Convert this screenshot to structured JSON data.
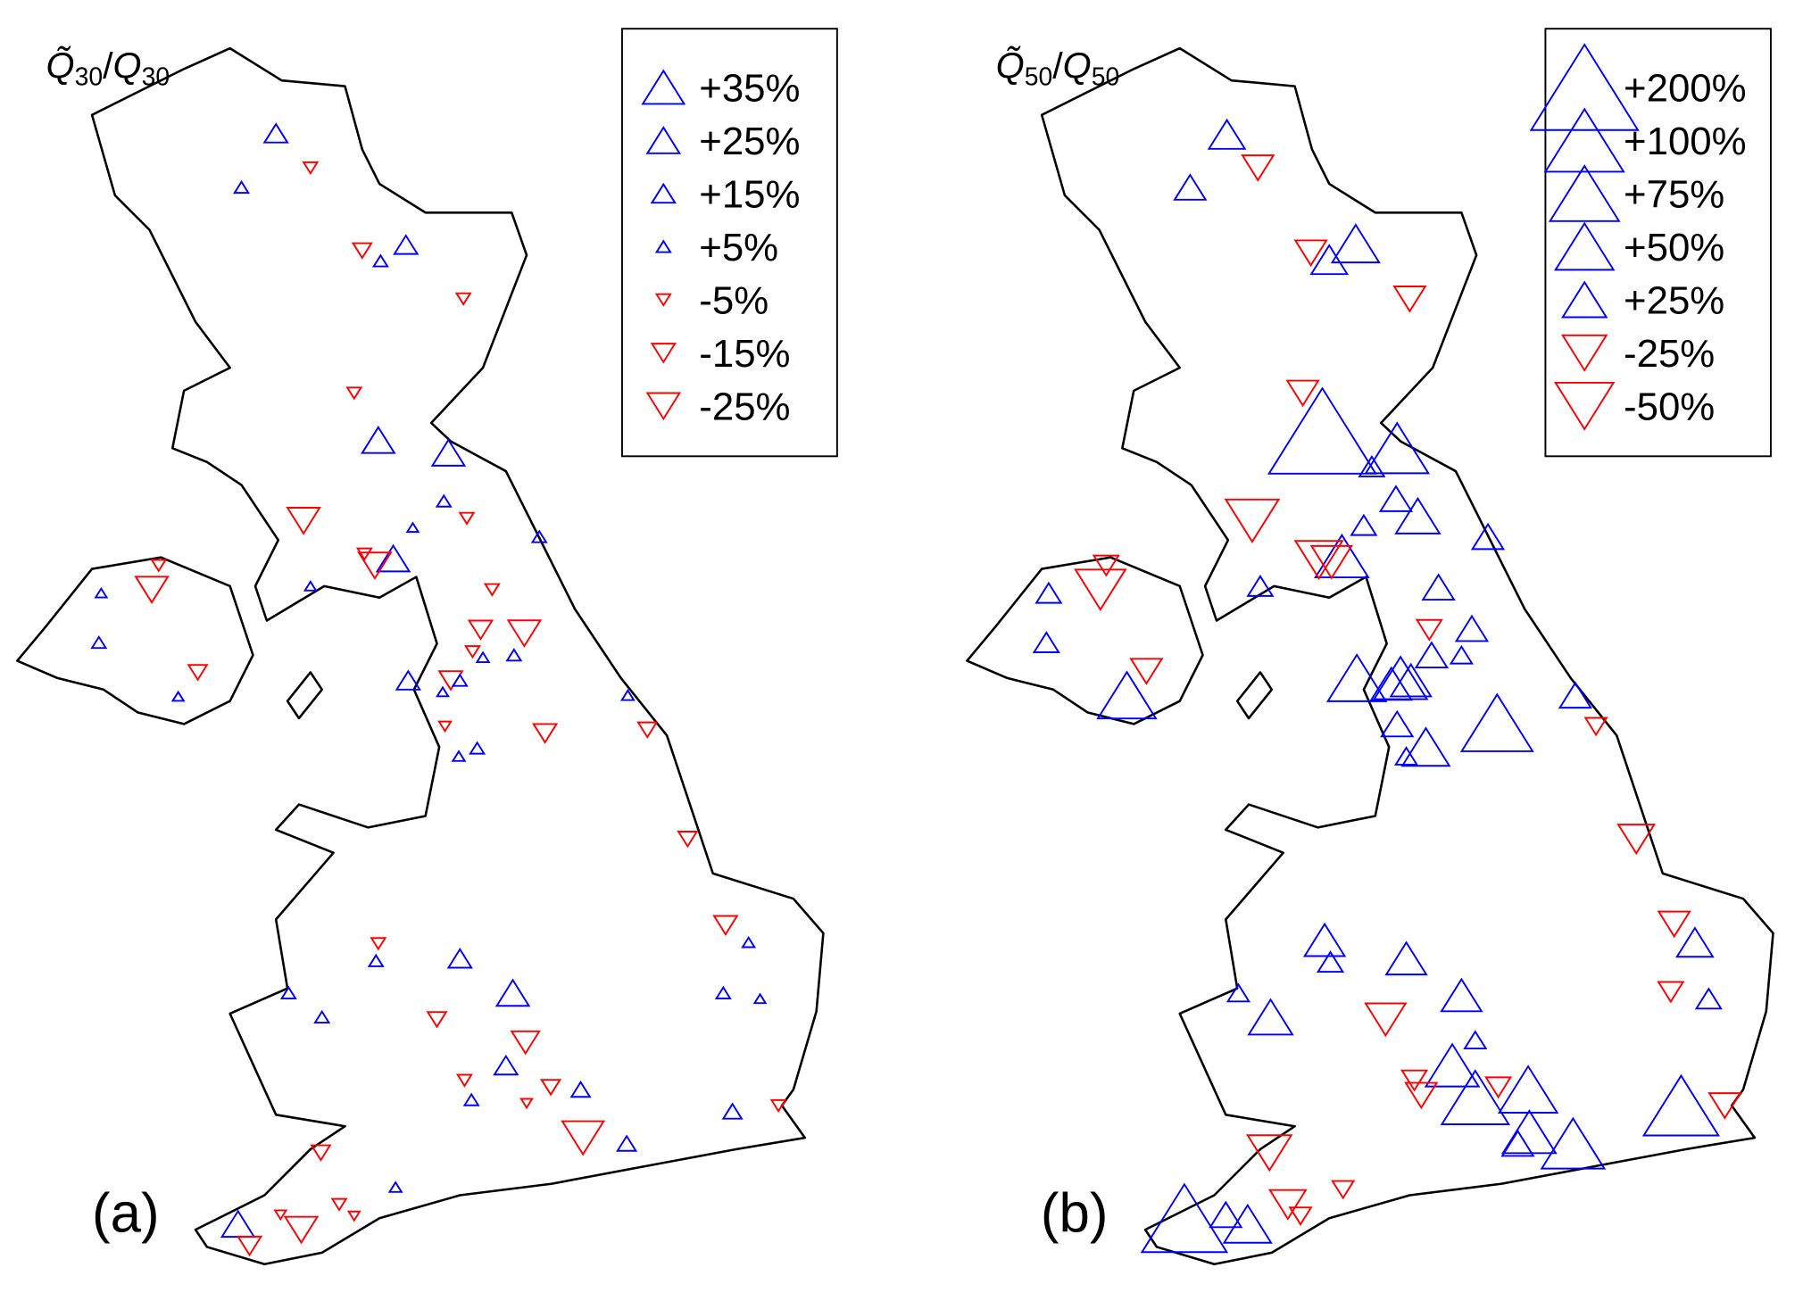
{
  "panels": [
    {
      "label": "(a)",
      "title": {
        "q": "Q̃",
        "sub1": "30",
        "sep": "/",
        "q2": "Q",
        "sub2": "30"
      },
      "legend": [
        {
          "value": 35,
          "label": "+35%"
        },
        {
          "value": 25,
          "label": "+25%"
        },
        {
          "value": 15,
          "label": "+15%"
        },
        {
          "value": 5,
          "label": "+5%"
        },
        {
          "value": -5,
          "label": "-5%"
        },
        {
          "value": -15,
          "label": "-15%"
        },
        {
          "value": -25,
          "label": "-25%"
        }
      ],
      "stations": [
        15,
        5,
        -5,
        15,
        5,
        -10,
        -5,
        -5,
        25,
        25,
        -25,
        5,
        2,
        -5,
        5,
        -5,
        25,
        -25,
        -5,
        -25,
        2,
        2,
        -5,
        5,
        -15,
        -25,
        -10,
        5,
        3,
        -5,
        15,
        -15,
        5,
        2,
        2,
        -15,
        3,
        -10,
        5,
        3,
        -3,
        -10,
        -15,
        3,
        -5,
        5,
        15,
        5,
        25,
        5,
        2,
        -10,
        5,
        -20,
        15,
        -5,
        5,
        -10,
        10,
        -2,
        10,
        -5,
        -35,
        10,
        -10,
        3,
        -5,
        -2,
        -25,
        25,
        -2,
        -15
      ]
    },
    {
      "label": "(b)",
      "title": {
        "q": "Q̃",
        "sub1": "50",
        "sep": "/",
        "q2": "Q",
        "sub2": "50"
      },
      "legend": [
        {
          "value": 200,
          "label": "+200%"
        },
        {
          "value": 100,
          "label": "+100%"
        },
        {
          "value": 75,
          "label": "+75%"
        },
        {
          "value": 50,
          "label": "+50%"
        },
        {
          "value": 25,
          "label": "+25%"
        },
        {
          "value": -25,
          "label": "-25%"
        },
        {
          "value": -50,
          "label": "-50%"
        }
      ],
      "stations": [
        15,
        10,
        -10,
        30,
        15,
        -10,
        -10,
        -10,
        200,
        60,
        5,
        -40,
        10,
        25,
        5,
        10,
        40,
        -30,
        -20,
        -5,
        -35,
        5,
        5,
        10,
        5,
        10,
        -5,
        -10,
        10,
        3,
        50,
        40,
        20,
        20,
        50,
        80,
        10,
        -3,
        30,
        10,
        3,
        -15,
        -10,
        15,
        20,
        5,
        20,
        3,
        20,
        -5,
        5,
        -20,
        25,
        3,
        40,
        -5,
        -10,
        70,
        -5,
        50,
        90,
        -10,
        40,
        60,
        10,
        -25,
        -3,
        -15,
        -3,
        30,
        120,
        10
      ]
    }
  ]
}
